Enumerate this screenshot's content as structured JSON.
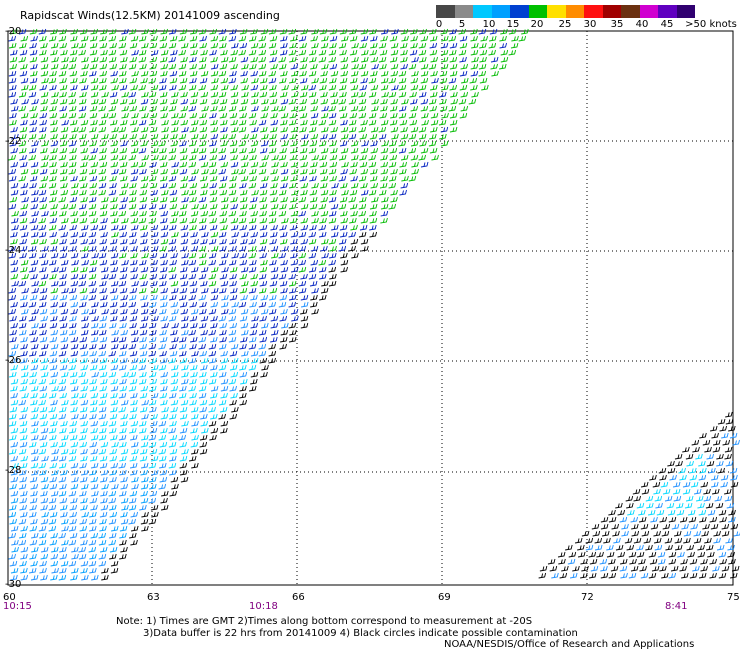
{
  "title": "Rapidscat Winds(12.5KM) 20141009 ascending",
  "colorbar": {
    "labels": [
      "0",
      "5",
      "10",
      "15",
      "20",
      "25",
      "30",
      "35",
      "40",
      "45",
      ">50 knots"
    ],
    "colors": [
      "#474747",
      "#8a8a8a",
      "#00c8ff",
      "#00a0ff",
      "#0040d0",
      "#00c000",
      "#ffe000",
      "#ff8c00",
      "#ff1010",
      "#a00000",
      "#6b3010",
      "#d000d0",
      "#6000c0",
      "#300070"
    ]
  },
  "axes": {
    "lon_ticks": [
      "60",
      "63",
      "66",
      "69",
      "72",
      "75"
    ],
    "lat_ticks": [
      "-20",
      "-22",
      "-24",
      "-26",
      "-28",
      "-30"
    ],
    "lon_range": [
      60,
      75
    ],
    "lat_range": [
      -20,
      -30
    ]
  },
  "times": [
    "10:15",
    "10:18",
    "8:41"
  ],
  "notes": [
    "Note: 1) Times are GMT 2)Times along bottom correspond to measurement at -20S",
    "3)Data buffer is 22 hrs from 20141009 4) Black circles indicate possible contamination",
    "NOAA/NESDIS/Office of Research and Applications"
  ]
}
